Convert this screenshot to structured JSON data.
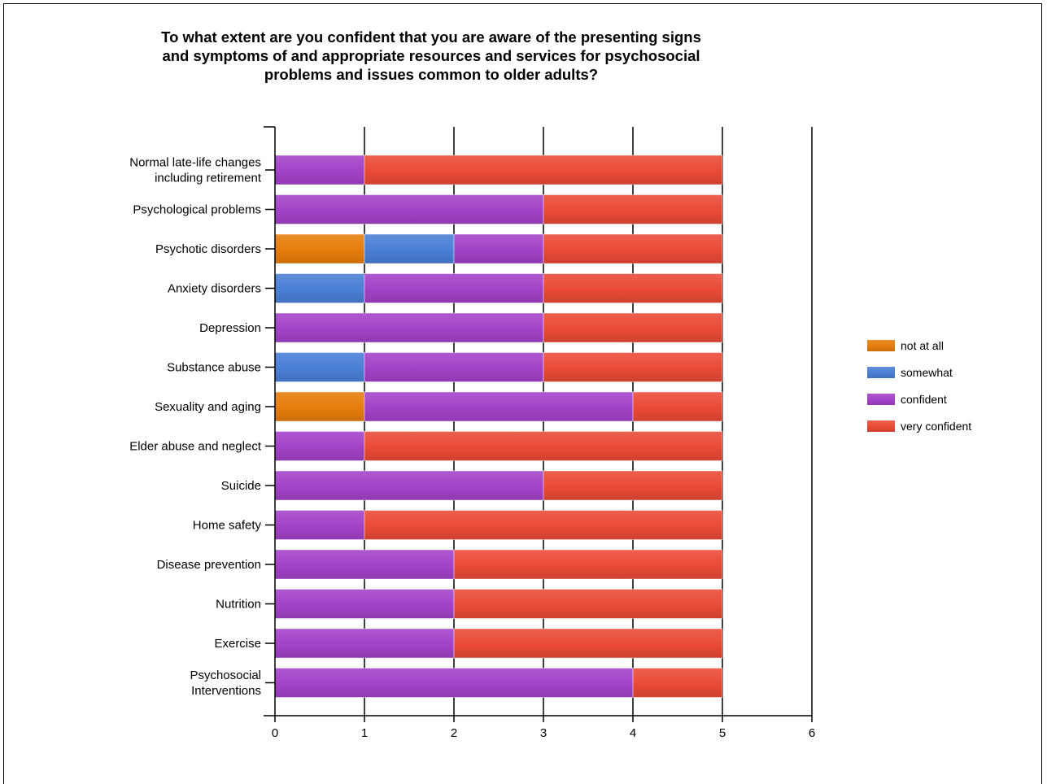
{
  "chart_data": {
    "type": "bar",
    "orientation": "horizontal",
    "stacked": true,
    "title": "To what extent are you confident that you are aware of the presenting signs\nand symptoms of and appropriate resources and services for psychosocial\nproblems and issues common to older adults?",
    "categories": [
      "Normal late-life changes\nincluding retirement",
      "Psychological problems",
      "Psychotic disorders",
      "Anxiety disorders",
      "Depression",
      "Substance abuse",
      "Sexuality and aging",
      "Elder abuse and neglect",
      "Suicide",
      "Home safety",
      "Disease prevention",
      "Nutrition",
      "Exercise",
      "Psychosocial\nInterventions"
    ],
    "series": [
      {
        "name": "not at all",
        "color": "#e67d0c",
        "values": [
          0,
          0,
          1,
          0,
          0,
          0,
          1,
          0,
          0,
          0,
          0,
          0,
          0,
          0
        ]
      },
      {
        "name": "somewhat",
        "color": "#4a7fd6",
        "values": [
          0,
          0,
          1,
          1,
          0,
          1,
          0,
          0,
          0,
          0,
          0,
          0,
          0,
          0
        ]
      },
      {
        "name": "confident",
        "color": "#a342c8",
        "values": [
          1,
          3,
          1,
          2,
          3,
          2,
          3,
          1,
          3,
          1,
          2,
          2,
          2,
          4
        ]
      },
      {
        "name": "very confident",
        "color": "#ea4a37",
        "values": [
          4,
          2,
          2,
          2,
          2,
          2,
          1,
          4,
          2,
          4,
          3,
          3,
          3,
          1
        ]
      }
    ],
    "xlim": [
      0,
      6
    ],
    "xticks": [
      0,
      1,
      2,
      3,
      4,
      5,
      6
    ],
    "grid": true,
    "legend_position": "right"
  }
}
